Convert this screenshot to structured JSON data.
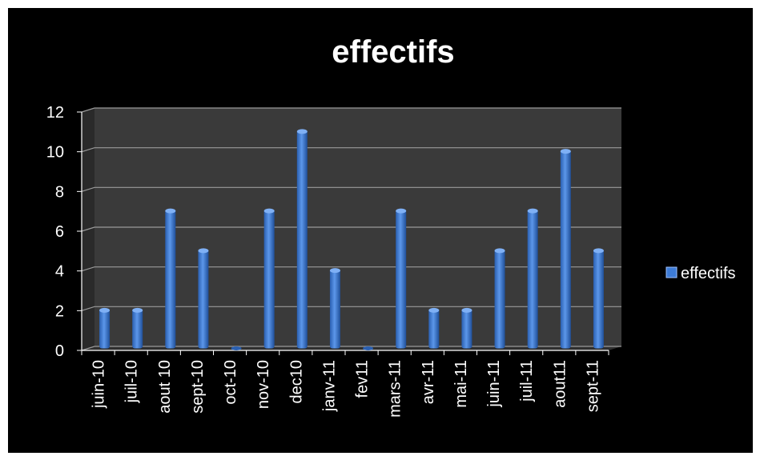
{
  "chart_data": {
    "type": "bar",
    "title": "effectifs",
    "xlabel": "",
    "ylabel": "",
    "categories": [
      "juin-10",
      "juil-10",
      "aout 10",
      "sept-10",
      "oct-10",
      "nov-10",
      "dec10",
      "janv-11",
      "fev11",
      "mars-11",
      "avr-11",
      "mai-11",
      "juin-11",
      "juil-11",
      "aout11",
      "sept-11"
    ],
    "series": [
      {
        "name": "effectifs",
        "values": [
          2,
          2,
          7,
          5,
          0,
          7,
          11,
          4,
          0,
          7,
          2,
          2,
          5,
          7,
          10,
          5
        ]
      }
    ],
    "ylim": [
      0,
      12
    ],
    "yticks": [
      "0",
      "2",
      "4",
      "6",
      "8",
      "10",
      "12"
    ],
    "grid": true,
    "legend_position": "right",
    "colors": {
      "background": "#000000",
      "plot_wall": "#3a3a3a",
      "bar": "#3d7bd6",
      "bar_dark": "#1f4f99",
      "text": "#ffffff"
    }
  }
}
